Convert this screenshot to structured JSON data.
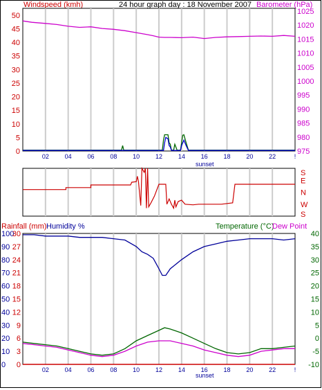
{
  "colors": {
    "wind": "#cc0000",
    "gust": "#006600",
    "avgwind": "#0000cc",
    "baro": "#cc00cc",
    "dir": "#cc0000",
    "hum": "#000099",
    "temp": "#006600",
    "dew": "#cc00cc",
    "rain": "#cc0000",
    "grid": "#cccccc",
    "xlabel": "#000099",
    "sunset": "#000099"
  },
  "header": {
    "title": "24 hour graph day : 18 November 2007"
  },
  "panel1": {
    "left_label": "Windspeed (kmh)",
    "right_label": "Barometer (hPa)",
    "sunset_label": "sunset"
  },
  "panel2": {
    "dir_labels": [
      "S",
      "E",
      "N",
      "W",
      "S"
    ]
  },
  "panel3": {
    "rain_label": "Rainfall (mm)",
    "hum_label": "Humidity %",
    "temp_label": "Temperature (°C)",
    "dew_label": "Dew Point",
    "sunset_label": "sunset"
  },
  "chart_data": [
    {
      "type": "line",
      "x_ticks": [
        "02",
        "04",
        "06",
        "08",
        "10",
        "12",
        "14",
        "16",
        "18",
        "20",
        "22",
        "!"
      ],
      "x_range": [
        0,
        24
      ],
      "left_axis": {
        "ticks": [
          0,
          5,
          10,
          15,
          20,
          25,
          30,
          35,
          40,
          45,
          50
        ],
        "range": [
          0,
          52.5
        ]
      },
      "right_axis": {
        "ticks": [
          975,
          980,
          985,
          990,
          995,
          1000,
          1005,
          1010,
          1015,
          1020,
          1025
        ],
        "range": [
          975,
          1026
        ]
      },
      "series": [
        {
          "key": "baro",
          "axis": "right",
          "points": [
            [
              0,
              1021.5
            ],
            [
              0.8,
              1021.0
            ],
            [
              2,
              1020.6
            ],
            [
              3,
              1020.2
            ],
            [
              4,
              1019.6
            ],
            [
              5,
              1019.2
            ],
            [
              6,
              1019.4
            ],
            [
              7,
              1018.8
            ],
            [
              8,
              1018.5
            ],
            [
              9,
              1018.0
            ],
            [
              10,
              1017.3
            ],
            [
              11,
              1016.6
            ],
            [
              11.5,
              1016.2
            ],
            [
              12,
              1015.7
            ],
            [
              12.5,
              1015.6
            ],
            [
              13,
              1015.6
            ],
            [
              14,
              1015.5
            ],
            [
              15,
              1015.7
            ],
            [
              16,
              1015.2
            ],
            [
              17,
              1015.6
            ],
            [
              18,
              1015.8
            ],
            [
              19,
              1015.9
            ],
            [
              20,
              1016.0
            ],
            [
              21,
              1016.1
            ],
            [
              22,
              1016.0
            ],
            [
              23,
              1016.3
            ],
            [
              24,
              1016.0
            ]
          ]
        },
        {
          "key": "gust",
          "axis": "left",
          "points": [
            [
              0,
              0.3
            ],
            [
              8.7,
              0.3
            ],
            [
              8.8,
              2.0
            ],
            [
              8.9,
              0.3
            ],
            [
              12.3,
              0.3
            ],
            [
              12.4,
              4.0
            ],
            [
              12.5,
              6.0
            ],
            [
              12.6,
              6.0
            ],
            [
              12.8,
              6.0
            ],
            [
              12.9,
              3.0
            ],
            [
              13.0,
              2.5
            ],
            [
              13.1,
              0.3
            ],
            [
              13.3,
              0.3
            ],
            [
              13.4,
              2.5
            ],
            [
              13.6,
              0.3
            ],
            [
              13.9,
              0.3
            ],
            [
              14.0,
              3.0
            ],
            [
              14.1,
              5.8
            ],
            [
              14.2,
              6.0
            ],
            [
              14.4,
              3.0
            ],
            [
              14.6,
              0.3
            ],
            [
              24,
              0.3
            ]
          ]
        },
        {
          "key": "avgwind",
          "axis": "left",
          "points": [
            [
              0,
              0.2
            ],
            [
              12.4,
              0.2
            ],
            [
              12.5,
              3.0
            ],
            [
              12.6,
              5.0
            ],
            [
              12.8,
              4.5
            ],
            [
              12.9,
              2.0
            ],
            [
              13.0,
              1.5
            ],
            [
              13.1,
              0.2
            ],
            [
              13.9,
              0.2
            ],
            [
              14.0,
              2.0
            ],
            [
              14.2,
              4.0
            ],
            [
              14.4,
              2.0
            ],
            [
              14.6,
              0.2
            ],
            [
              24,
              0.2
            ]
          ]
        }
      ]
    },
    {
      "type": "line",
      "x_ticks": [
        "02",
        "04",
        "06",
        "08",
        "10",
        "12",
        "14",
        "16",
        "18",
        "20",
        "22",
        "!"
      ],
      "x_range": [
        0,
        24
      ],
      "y_axis": {
        "ticks": [
          "S",
          "E",
          "N",
          "W",
          "S"
        ],
        "range": [
          0,
          360
        ]
      },
      "series": [
        {
          "key": "dir",
          "points": [
            [
              0,
              200
            ],
            [
              3.8,
              200
            ],
            [
              3.8,
              215
            ],
            [
              6.0,
              215
            ],
            [
              6.0,
              235
            ],
            [
              9.5,
              235
            ],
            [
              9.6,
              255
            ],
            [
              10.0,
              260
            ],
            [
              10.1,
              300
            ],
            [
              10.2,
              260
            ],
            [
              10.4,
              80
            ],
            [
              10.5,
              360
            ],
            [
              10.7,
              330
            ],
            [
              10.8,
              360
            ],
            [
              10.9,
              60
            ],
            [
              11.0,
              360
            ],
            [
              11.1,
              70
            ],
            [
              11.3,
              100
            ],
            [
              11.6,
              150
            ],
            [
              12.0,
              240
            ],
            [
              12.6,
              240
            ],
            [
              12.7,
              90
            ],
            [
              12.9,
              130
            ],
            [
              13.1,
              90
            ],
            [
              13.3,
              60
            ],
            [
              13.4,
              120
            ],
            [
              13.5,
              70
            ],
            [
              13.7,
              110
            ],
            [
              14.0,
              120
            ],
            [
              14.3,
              90
            ],
            [
              15.0,
              85
            ],
            [
              15.5,
              90
            ],
            [
              17.5,
              90
            ],
            [
              18.5,
              100
            ],
            [
              18.7,
              240
            ],
            [
              24,
              240
            ]
          ]
        }
      ]
    },
    {
      "type": "line",
      "x_ticks": [
        "02",
        "04",
        "06",
        "08",
        "10",
        "12",
        "14",
        "16",
        "18",
        "20",
        "22",
        "!"
      ],
      "x_range": [
        0,
        24
      ],
      "humidity_axis": {
        "ticks": [
          0,
          10,
          20,
          30,
          40,
          50,
          60,
          70,
          80,
          90,
          100
        ],
        "range": [
          0,
          100
        ]
      },
      "rain_axis": {
        "ticks": [
          0,
          3,
          6,
          9,
          12,
          15,
          18,
          21,
          24,
          27,
          30
        ],
        "range": [
          0,
          30
        ]
      },
      "temp_axis": {
        "ticks": [
          -10,
          -5,
          0,
          5,
          10,
          15,
          20,
          25,
          30,
          35,
          40
        ],
        "range": [
          -10,
          40
        ]
      },
      "series": [
        {
          "key": "hum",
          "axis": "humidity",
          "points": [
            [
              0,
              99
            ],
            [
              1,
              99
            ],
            [
              2,
              98
            ],
            [
              3,
              98
            ],
            [
              4,
              98
            ],
            [
              5,
              97
            ],
            [
              6,
              97
            ],
            [
              7,
              97
            ],
            [
              8,
              96
            ],
            [
              9,
              95
            ],
            [
              10,
              90
            ],
            [
              10.5,
              86
            ],
            [
              11,
              84
            ],
            [
              11.5,
              81
            ],
            [
              12,
              73
            ],
            [
              12.3,
              68
            ],
            [
              12.6,
              68
            ],
            [
              13,
              73
            ],
            [
              14,
              80
            ],
            [
              15,
              86
            ],
            [
              16,
              90
            ],
            [
              17,
              92
            ],
            [
              18,
              94
            ],
            [
              19,
              95
            ],
            [
              20,
              96
            ],
            [
              21,
              96
            ],
            [
              22,
              96
            ],
            [
              23,
              95
            ],
            [
              24,
              96
            ]
          ]
        },
        {
          "key": "temp",
          "axis": "temp",
          "points": [
            [
              0,
              -1.5
            ],
            [
              1,
              -2.0
            ],
            [
              2,
              -2.5
            ],
            [
              3,
              -3.0
            ],
            [
              4,
              -4.0
            ],
            [
              5,
              -5.0
            ],
            [
              6,
              -6.0
            ],
            [
              7,
              -6.5
            ],
            [
              8,
              -6.0
            ],
            [
              9,
              -4.0
            ],
            [
              10,
              -1.0
            ],
            [
              11,
              1.0
            ],
            [
              12,
              3.0
            ],
            [
              12.5,
              4.0
            ],
            [
              13,
              3.5
            ],
            [
              14,
              2.0
            ],
            [
              15,
              0.0
            ],
            [
              16,
              -2.0
            ],
            [
              17,
              -4.0
            ],
            [
              18,
              -5.5
            ],
            [
              19,
              -6.0
            ],
            [
              20,
              -5.5
            ],
            [
              21,
              -4.0
            ],
            [
              22,
              -4.0
            ],
            [
              23,
              -3.5
            ],
            [
              24,
              -3.0
            ]
          ]
        },
        {
          "key": "dew",
          "axis": "temp",
          "points": [
            [
              0,
              -2.0
            ],
            [
              1,
              -2.5
            ],
            [
              2,
              -3.0
            ],
            [
              3,
              -3.5
            ],
            [
              4,
              -4.5
            ],
            [
              5,
              -5.5
            ],
            [
              6,
              -6.5
            ],
            [
              7,
              -7.0
            ],
            [
              8,
              -6.5
            ],
            [
              9,
              -5.0
            ],
            [
              10,
              -3.0
            ],
            [
              11,
              -1.5
            ],
            [
              12,
              -1.0
            ],
            [
              13,
              -1.0
            ],
            [
              14,
              -2.0
            ],
            [
              15,
              -3.0
            ],
            [
              16,
              -4.5
            ],
            [
              17,
              -5.5
            ],
            [
              18,
              -6.5
            ],
            [
              19,
              -7.0
            ],
            [
              20,
              -6.5
            ],
            [
              21,
              -5.0
            ],
            [
              22,
              -4.5
            ],
            [
              23,
              -4.0
            ],
            [
              24,
              -4.0
            ]
          ]
        },
        {
          "key": "rain",
          "axis": "rain",
          "points": [
            [
              0,
              0
            ],
            [
              24,
              0
            ]
          ]
        }
      ]
    }
  ]
}
